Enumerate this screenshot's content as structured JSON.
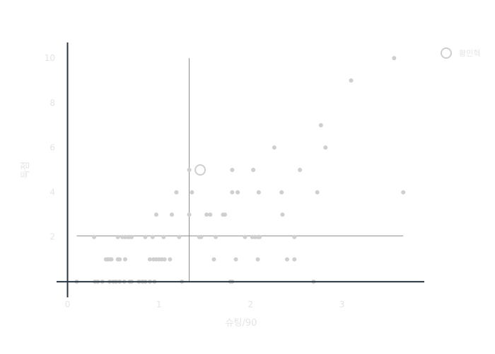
{
  "chart_data": {
    "type": "scatter",
    "title": "",
    "xlabel": "슈팅/90",
    "ylabel": "득점",
    "xlim": [
      -0.12,
      3.9
    ],
    "ylim": [
      -0.7,
      10.7
    ],
    "xticks": [
      0,
      1,
      2,
      3
    ],
    "yticks": [
      2,
      4,
      6,
      8,
      10
    ],
    "grid": false,
    "legend_position": "top-right",
    "colors": {
      "points": "#cfcfcf",
      "highlight": "#cfcfcf",
      "axis": "#2a3542",
      "reference": "#8a8a8a"
    },
    "reference_lines": {
      "vertical_x": 1.33,
      "vertical_y_range": [
        0,
        10
      ],
      "horizontal_y": 2.05,
      "horizontal_x_range": [
        0.1,
        3.67
      ]
    },
    "highlight": {
      "name": "황민혁",
      "x": 1.45,
      "y": 5
    },
    "series": [
      {
        "x": [
          0.1,
          0.3,
          0.33,
          0.38,
          0.46,
          0.5,
          0.53,
          0.57,
          0.62,
          0.68,
          0.7,
          0.78,
          0.82,
          0.85,
          0.9,
          0.95,
          1.25,
          1.78,
          1.8,
          2.69,
          0.42,
          0.44,
          0.46,
          0.48,
          0.55,
          0.57,
          0.63,
          0.9,
          0.94,
          0.97,
          1.0,
          1.03,
          1.06,
          1.12,
          1.6,
          1.84,
          2.08,
          2.4,
          2.48,
          0.29,
          0.55,
          0.6,
          0.63,
          0.66,
          0.68,
          0.7,
          0.85,
          0.93,
          1.05,
          1.22,
          1.44,
          1.46,
          1.62,
          1.94,
          2.02,
          2.05,
          2.08,
          2.1,
          2.48,
          0.97,
          1.14,
          1.33,
          1.52,
          1.56,
          1.7,
          1.72,
          2.35,
          1.19,
          1.36,
          1.8,
          1.86,
          2.09,
          2.34,
          2.73,
          3.67,
          1.33,
          1.8,
          2.03,
          2.54,
          2.26,
          2.82,
          2.77,
          3.1,
          3.57
        ],
        "y": [
          0,
          0,
          0,
          0,
          0,
          0,
          0,
          0,
          0,
          0,
          0,
          0,
          0,
          0,
          0,
          0,
          0,
          0,
          0,
          0,
          1,
          1,
          1,
          1,
          1,
          1,
          1,
          1,
          1,
          1,
          1,
          1,
          1,
          1,
          1,
          1,
          1,
          1,
          1,
          2,
          2,
          2,
          2,
          2,
          2,
          2,
          2,
          2,
          2,
          2,
          2,
          2,
          2,
          2,
          2,
          2,
          2,
          2,
          2,
          3,
          3,
          3,
          3,
          3,
          3,
          3,
          3,
          4,
          4,
          4,
          4,
          4,
          4,
          4,
          4,
          5,
          5,
          5,
          5,
          6,
          6,
          7,
          9,
          10
        ]
      }
    ]
  }
}
